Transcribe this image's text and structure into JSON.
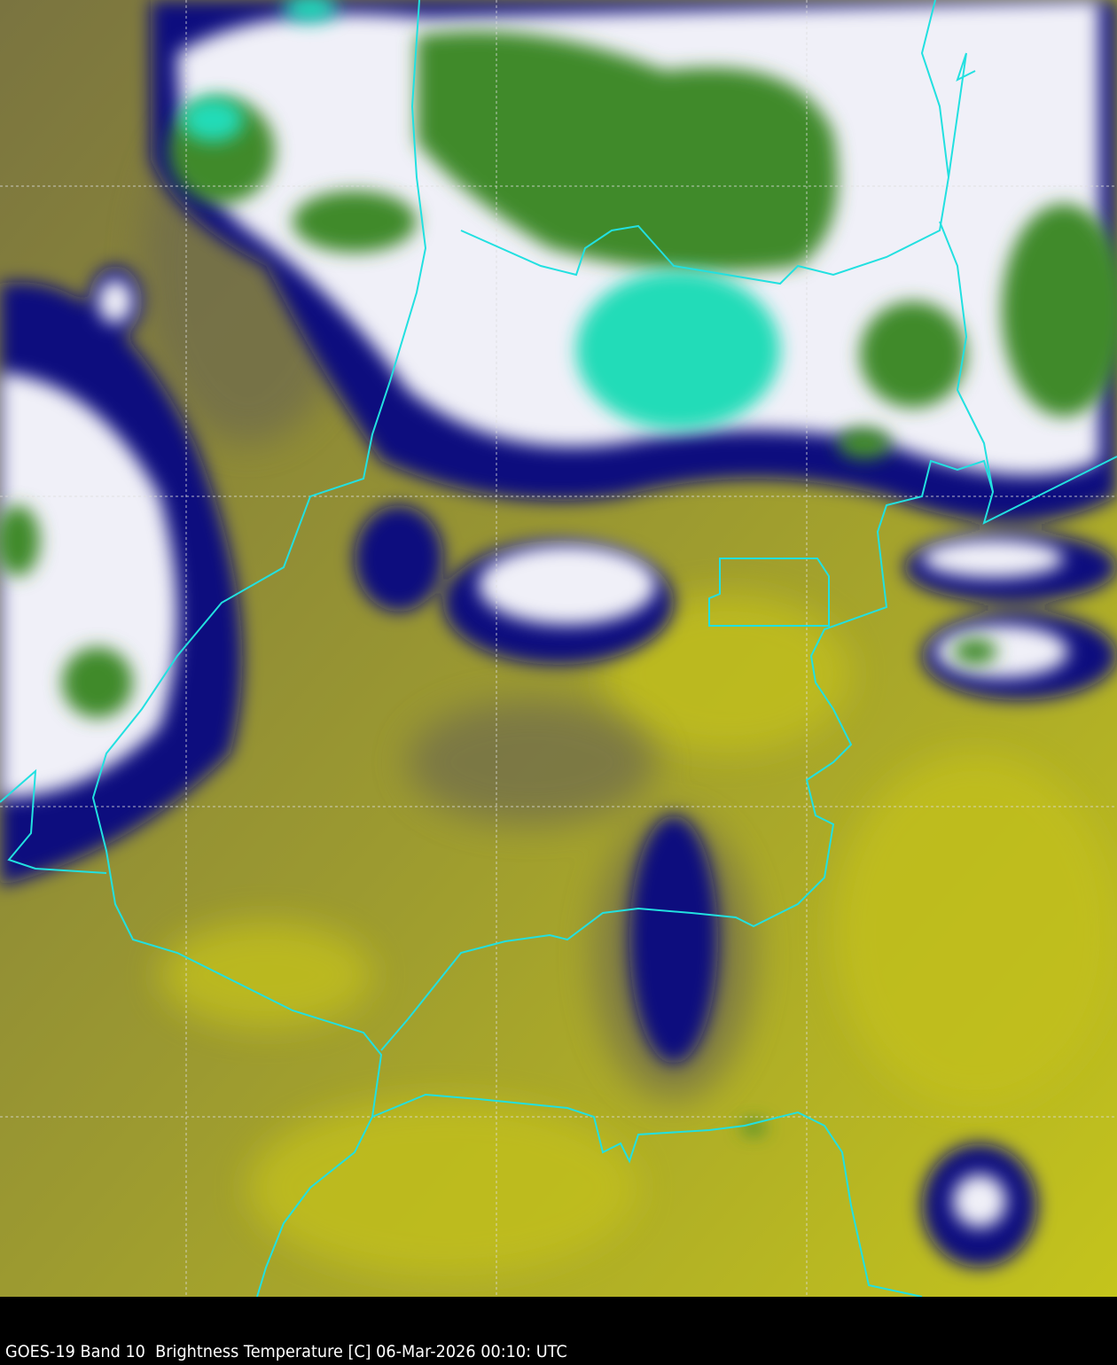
{
  "caption": "GOES-19 Band 10  Brightness Temperature [C] 06-Mar-2026 00:10: UTC",
  "colors": {
    "background_clear": "#a3a22a",
    "warm_yellow": "#c4c41c",
    "olive_dark": "#7a7440",
    "cloud_edge_navy": "#10107e",
    "cloud_white": "#f4f4fa",
    "cold_green": "#3f8a2c",
    "coldest_teal": "#22dcb8",
    "border_line": "#22e0e0",
    "grid_line": "#dddddd"
  }
}
